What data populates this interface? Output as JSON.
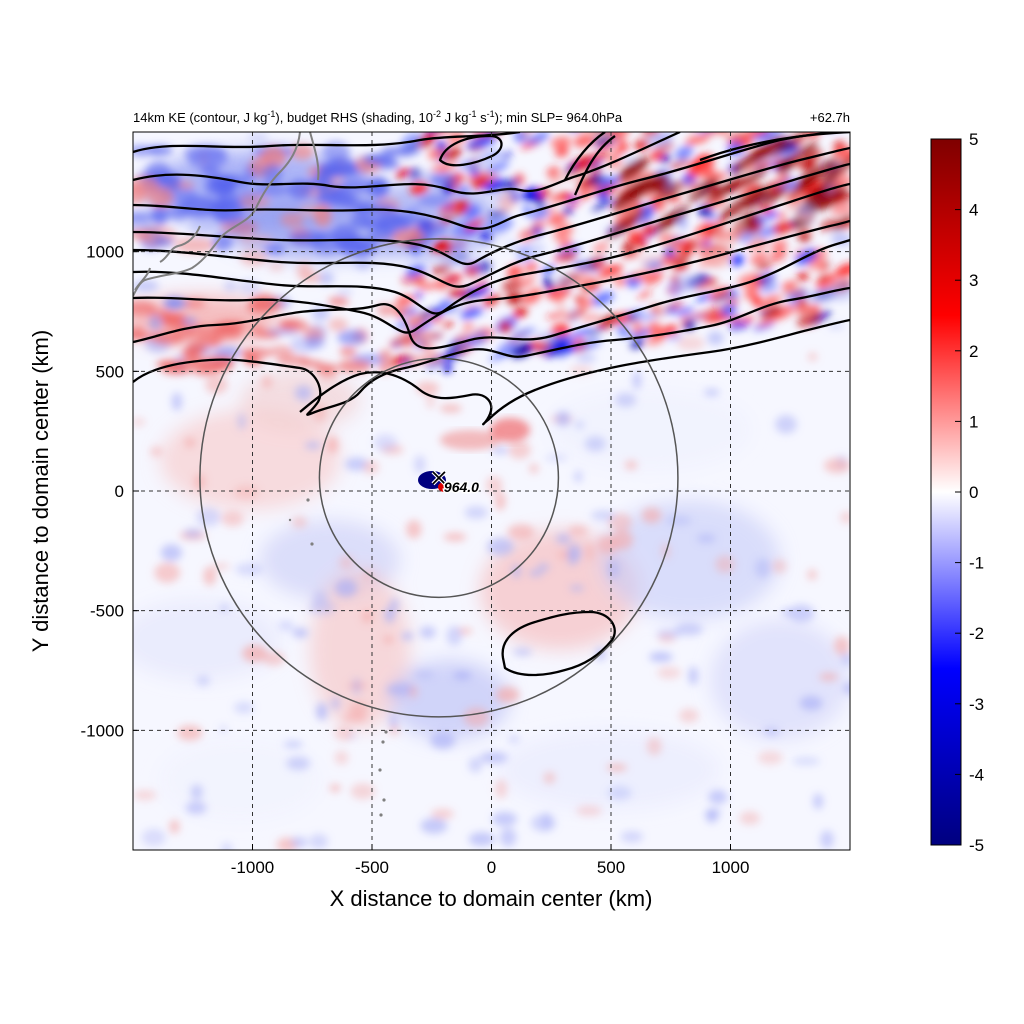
{
  "chart_data": {
    "type": "heatmap",
    "title_parts": {
      "pre": "14km KE (contour, J kg",
      "sup1": "-1",
      "mid1": "), budget RHS (shading, 10",
      "sup2": "-2",
      "mid2": " J kg",
      "sup3": "-1",
      "mid3": " s",
      "sup4": "-1",
      "post": "); min SLP= 964.0hPa"
    },
    "forecast_time": "+62.7h",
    "xlabel": "X distance to domain center (km)",
    "ylabel": "Y distance to domain center (km)",
    "xlim": [
      -1500,
      1500
    ],
    "ylim": [
      -1500,
      1500
    ],
    "x_ticks": [
      -1000,
      -500,
      0,
      500,
      1000
    ],
    "x_tick_labels": [
      "-1000",
      "-500",
      "0",
      "500",
      "1000"
    ],
    "y_ticks": [
      -1000,
      -500,
      0,
      500,
      1000
    ],
    "y_tick_labels": [
      "-1000",
      "-500",
      "0",
      "500",
      "1000"
    ],
    "grid": "dashed",
    "colorbar": {
      "range": [
        -5,
        5
      ],
      "ticks": [
        -5,
        -4,
        -3,
        -2,
        -1,
        0,
        1,
        2,
        3,
        4,
        5
      ],
      "tick_labels": [
        "-5",
        "-4",
        "-3",
        "-2",
        "-1",
        "0",
        "1",
        "2",
        "3",
        "4",
        "5"
      ],
      "colors": [
        "#00007f",
        "#0000ff",
        "#ffffff",
        "#ff0000",
        "#7f0000"
      ]
    },
    "storm_center": {
      "x": -220,
      "y": 55,
      "label": "964.0"
    },
    "range_circles": [
      {
        "center_x": -220,
        "center_y": 55,
        "radius_km": 500
      },
      {
        "center_x": -220,
        "center_y": 55,
        "radius_km": 1000
      }
    ]
  }
}
